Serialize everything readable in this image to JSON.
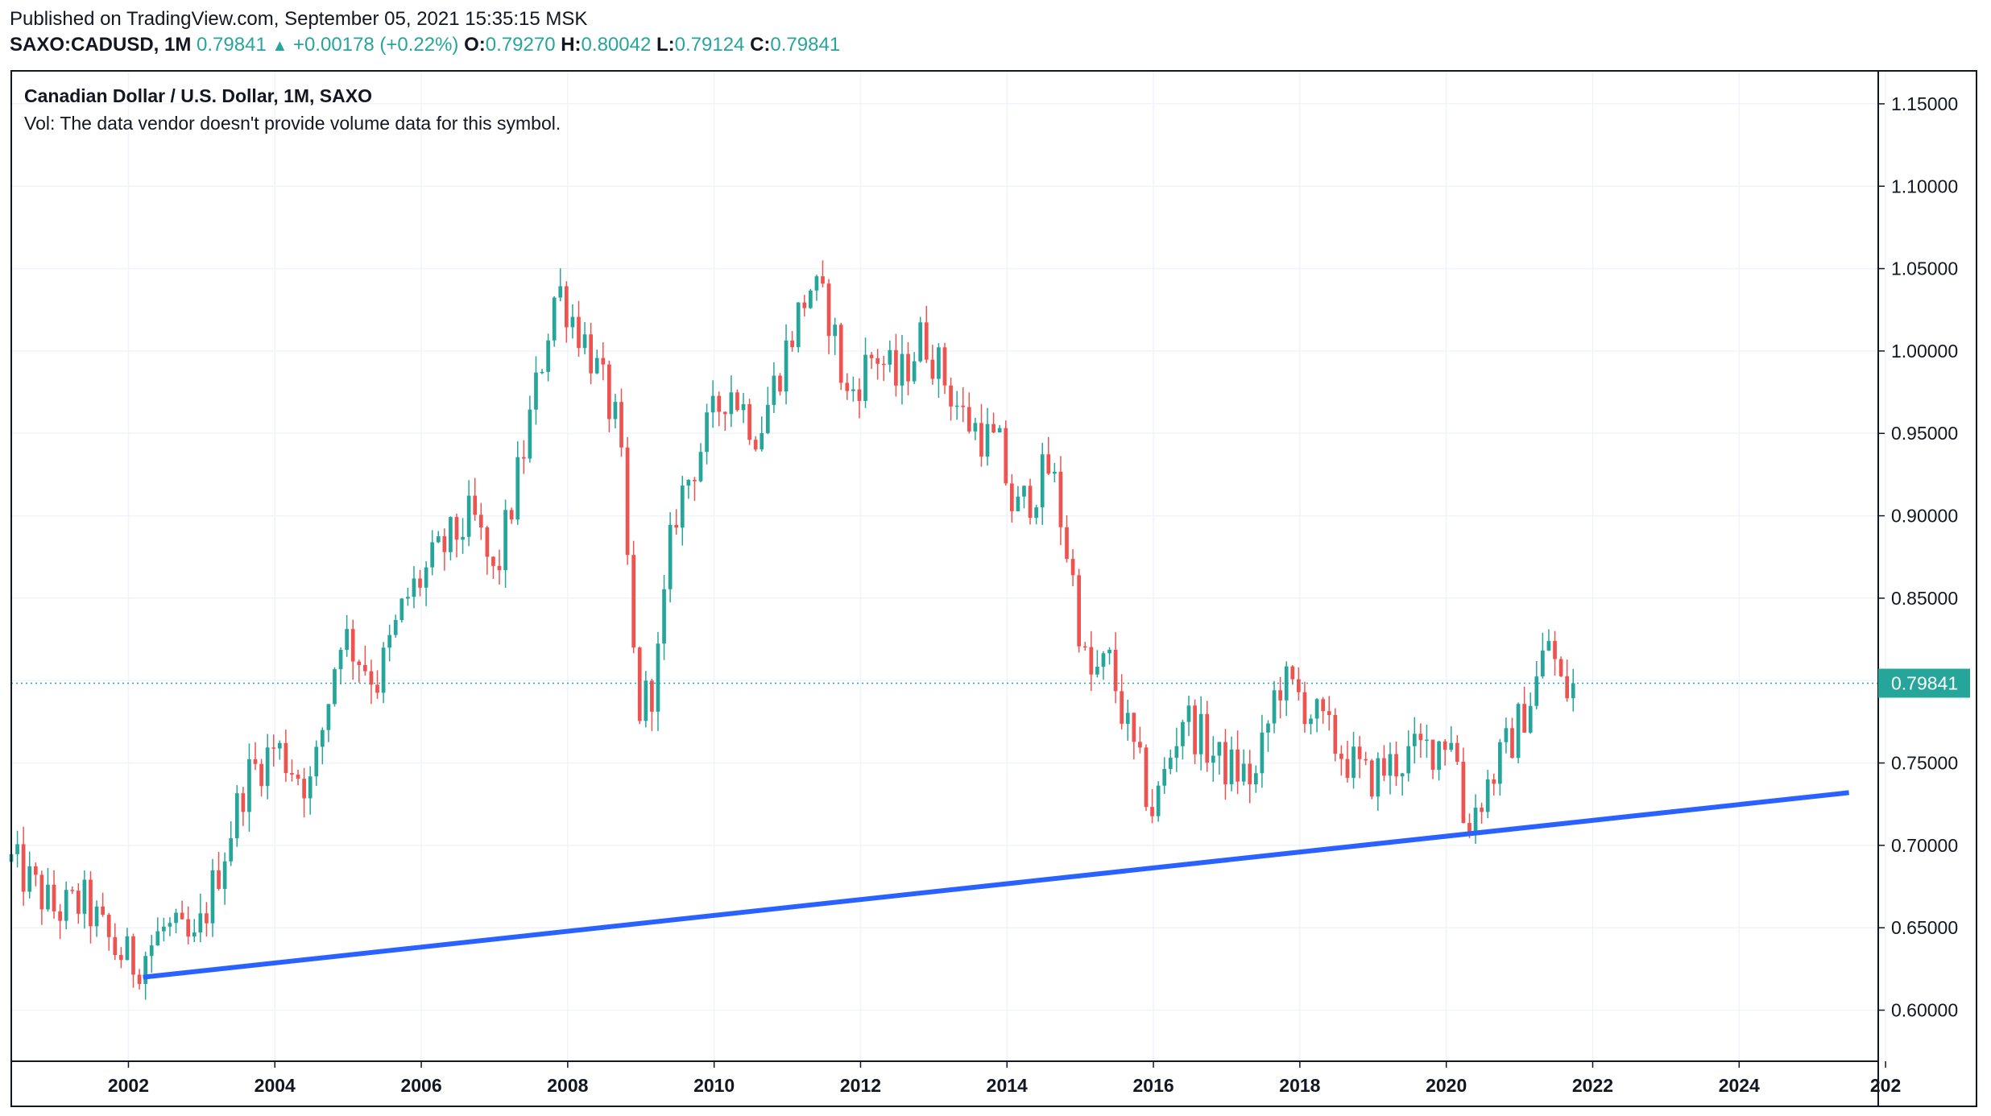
{
  "header": {
    "published": "Published on TradingView.com, September 05, 2021 15:35:15 MSK",
    "symbol": "SAXO:CADUSD, 1M",
    "last": "0.79841",
    "change_arrow": "▲",
    "change": "+0.00178 (+0.22%)",
    "o_label": "O:",
    "o_value": "0.79270",
    "h_label": "H:",
    "h_value": "0.80042",
    "l_label": "L:",
    "l_value": "0.79124",
    "c_label": "C:",
    "c_value": "0.79841"
  },
  "legend": {
    "title": "Canadian Dollar / U.S. Dollar, 1M, SAXO",
    "volume_note": "Vol: The data vendor doesn't provide volume data for this symbol."
  },
  "colors": {
    "up": "#26a69a",
    "down": "#ef5350",
    "trendline": "#2962ff",
    "grid": "#f0f3fa",
    "axis_text": "#131722",
    "price_label_bg": "#26a69a"
  },
  "chart_data": {
    "type": "candlestick",
    "symbol": "CADUSD",
    "interval": "1M",
    "ylim": [
      0.569,
      1.17
    ],
    "xlim": [
      2000.4,
      2025.9
    ],
    "y_ticks": [
      "1.15000",
      "1.10000",
      "1.05000",
      "1.00000",
      "0.95000",
      "0.90000",
      "0.85000",
      "0.80000",
      "0.75000",
      "0.70000",
      "0.65000",
      "0.60000"
    ],
    "x_ticks": [
      "2002",
      "2004",
      "2006",
      "2008",
      "2010",
      "2012",
      "2014",
      "2016",
      "2018",
      "2020",
      "2022",
      "2024",
      "202"
    ],
    "last_price": 0.79841,
    "last_price_label": "0.79841",
    "anchors": [
      [
        2000.4,
        0.69
      ],
      [
        2001.0,
        0.66
      ],
      [
        2001.4,
        0.665
      ],
      [
        2001.8,
        0.637
      ],
      [
        2002.1,
        0.628
      ],
      [
        2002.5,
        0.65
      ],
      [
        2002.9,
        0.638
      ],
      [
        2003.4,
        0.71
      ],
      [
        2003.6,
        0.74
      ],
      [
        2004.0,
        0.76
      ],
      [
        2004.5,
        0.735
      ],
      [
        2004.9,
        0.83
      ],
      [
        2005.4,
        0.8
      ],
      [
        2005.8,
        0.85
      ],
      [
        2006.3,
        0.88
      ],
      [
        2006.7,
        0.9
      ],
      [
        2007.0,
        0.86
      ],
      [
        2007.4,
        0.94
      ],
      [
        2007.85,
        1.04
      ],
      [
        2008.3,
        1.0
      ],
      [
        2008.7,
        0.95
      ],
      [
        2008.95,
        0.78
      ],
      [
        2009.2,
        0.8
      ],
      [
        2009.45,
        0.9
      ],
      [
        2009.8,
        0.94
      ],
      [
        2010.2,
        0.98
      ],
      [
        2010.6,
        0.95
      ],
      [
        2010.9,
        0.99
      ],
      [
        2011.3,
        1.04
      ],
      [
        2011.6,
        1.02
      ],
      [
        2011.8,
        0.97
      ],
      [
        2012.2,
        1.0
      ],
      [
        2012.5,
        0.98
      ],
      [
        2012.85,
        1.01
      ],
      [
        2013.4,
        0.96
      ],
      [
        2013.9,
        0.94
      ],
      [
        2014.1,
        0.9
      ],
      [
        2014.6,
        0.93
      ],
      [
        2014.9,
        0.86
      ],
      [
        2015.1,
        0.8
      ],
      [
        2015.4,
        0.81
      ],
      [
        2015.7,
        0.76
      ],
      [
        2016.0,
        0.72
      ],
      [
        2016.4,
        0.78
      ],
      [
        2016.9,
        0.75
      ],
      [
        2017.4,
        0.74
      ],
      [
        2017.7,
        0.8
      ],
      [
        2018.0,
        0.79
      ],
      [
        2018.5,
        0.76
      ],
      [
        2018.9,
        0.74
      ],
      [
        2019.3,
        0.75
      ],
      [
        2019.8,
        0.76
      ],
      [
        2020.1,
        0.77
      ],
      [
        2020.25,
        0.71
      ],
      [
        2020.6,
        0.74
      ],
      [
        2020.9,
        0.765
      ],
      [
        2021.2,
        0.795
      ],
      [
        2021.4,
        0.825
      ],
      [
        2021.6,
        0.79
      ],
      [
        2021.7,
        0.798
      ]
    ],
    "trendline": [
      [
        2002.2,
        0.62
      ],
      [
        2025.5,
        0.732
      ]
    ]
  }
}
